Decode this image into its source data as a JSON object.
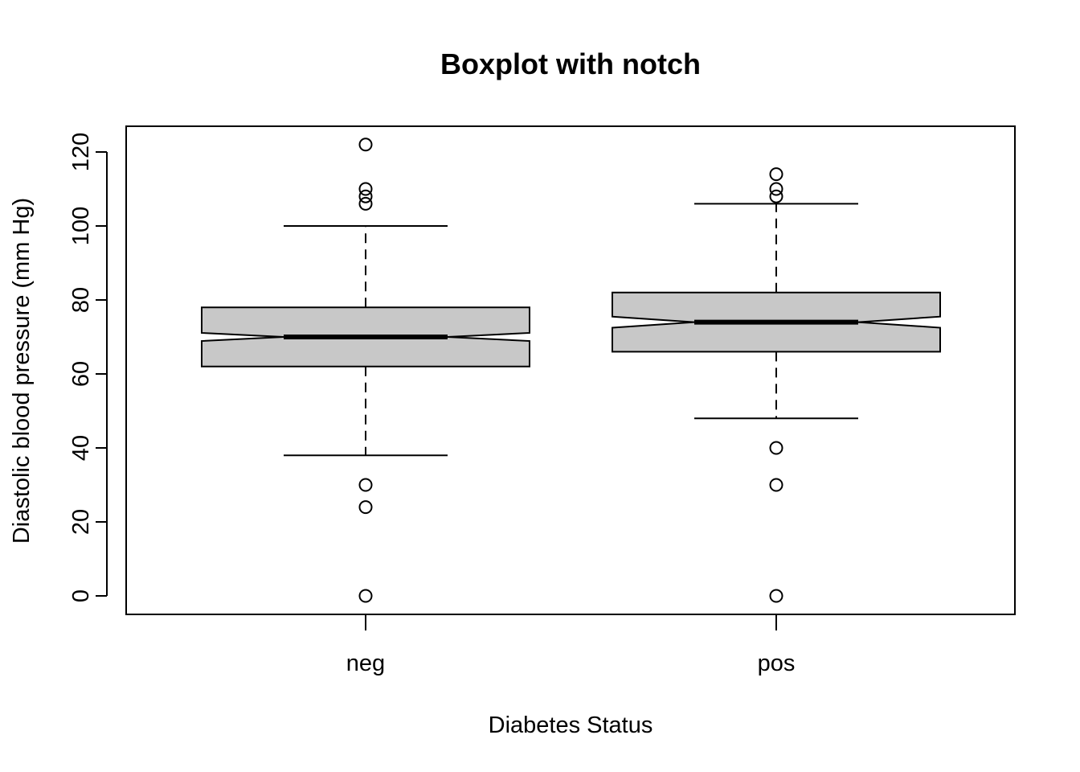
{
  "chart_data": {
    "type": "boxplot",
    "title": "Boxplot with notch",
    "xlabel": "Diabetes Status",
    "ylabel": "Diastolic blood pressure (mm Hg)",
    "categories": [
      "neg",
      "pos"
    ],
    "yticks": [
      0,
      20,
      40,
      60,
      80,
      100,
      120
    ],
    "ylim": [
      -5,
      127
    ],
    "grid": false,
    "notch": true,
    "box_fill": "#c8c8c8",
    "boxes": [
      {
        "category": "neg",
        "whisker_low": 38,
        "q1": 62,
        "median": 70,
        "q3": 78,
        "whisker_high": 100,
        "notch_low": 68.9,
        "notch_high": 71.1,
        "outliers": [
          122,
          110,
          108,
          106,
          30,
          24,
          0
        ]
      },
      {
        "category": "pos",
        "whisker_low": 48,
        "q1": 66,
        "median": 74,
        "q3": 82,
        "whisker_high": 106,
        "notch_low": 72.5,
        "notch_high": 75.5,
        "outliers": [
          114,
          110,
          108,
          40,
          30,
          0
        ]
      }
    ]
  }
}
